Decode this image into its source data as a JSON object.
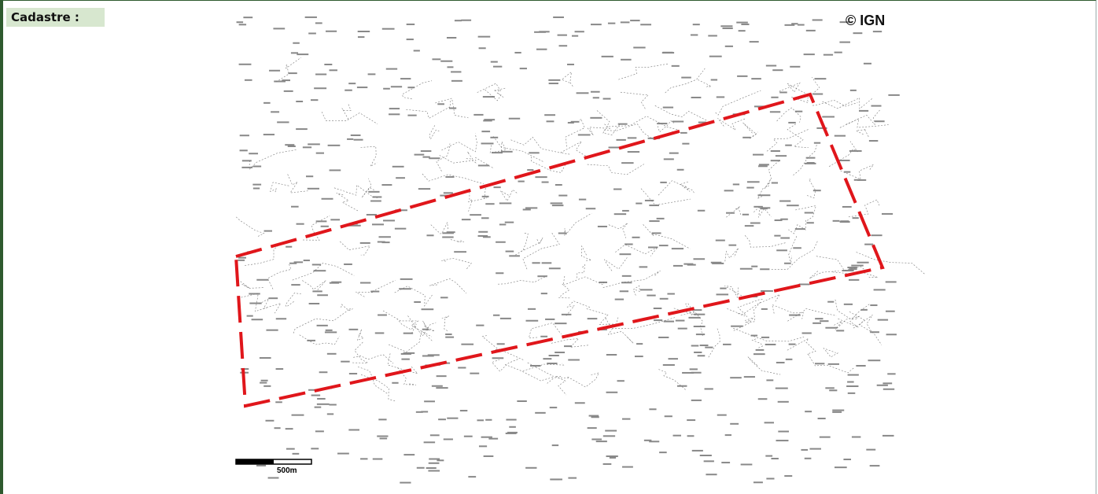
{
  "header": {
    "title": "Cadastre :"
  },
  "map": {
    "copyright": "© IGN",
    "scale_label": "500m"
  }
}
